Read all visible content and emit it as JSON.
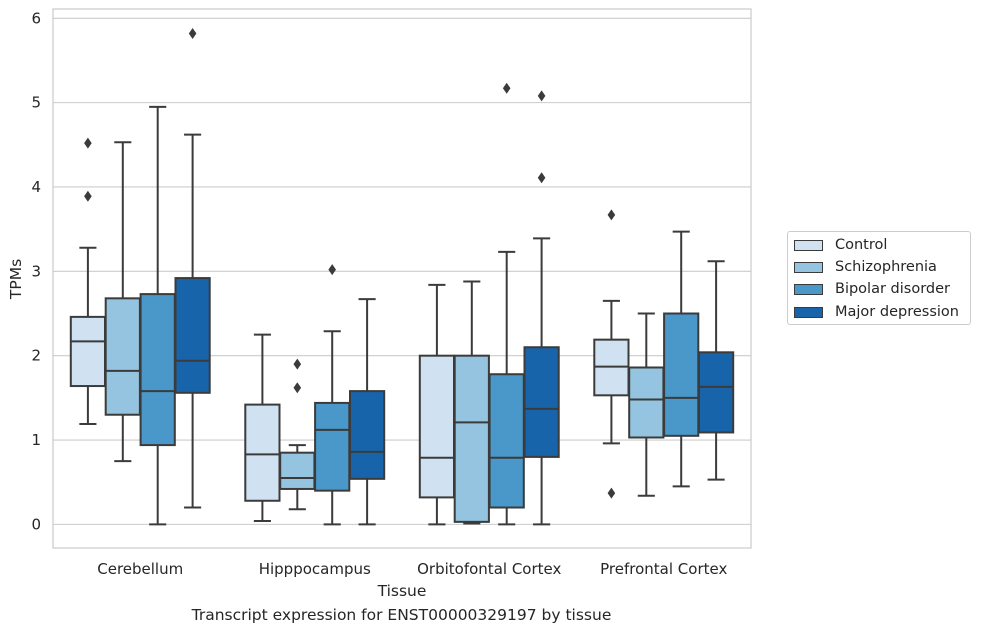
{
  "caption": "Transcript expression for ENST00000329197 by tissue",
  "colors": [
    "#d0e1f2",
    "#94c4df",
    "#4a98c9",
    "#1764ab"
  ],
  "chart_data": {
    "type": "box",
    "xlabel": "Tissue",
    "ylabel": "TPMs",
    "ylim": [
      -0.28,
      6.11
    ],
    "yticks": [
      0,
      1,
      2,
      3,
      4,
      5,
      6
    ],
    "grid": true,
    "legend_position": "right",
    "categories": [
      "Cerebellum",
      "Hipppocampus",
      "Orbitofontal Cortex",
      "Prefrontal Cortex"
    ],
    "series": [
      {
        "name": "Control",
        "boxes": [
          {
            "whislo": 1.19,
            "q1": 1.64,
            "med": 2.17,
            "q3": 2.46,
            "whishi": 3.28,
            "fliers": [
              3.89,
              4.52
            ]
          },
          {
            "whislo": 0.04,
            "q1": 0.28,
            "med": 0.83,
            "q3": 1.42,
            "whishi": 2.25,
            "fliers": []
          },
          {
            "whislo": 0.0,
            "q1": 0.32,
            "med": 0.79,
            "q3": 2.0,
            "whishi": 2.84,
            "fliers": []
          },
          {
            "whislo": 0.96,
            "q1": 1.53,
            "med": 1.87,
            "q3": 2.19,
            "whishi": 2.65,
            "fliers": [
              0.37,
              3.67
            ]
          }
        ]
      },
      {
        "name": "Schizophrenia",
        "boxes": [
          {
            "whislo": 0.75,
            "q1": 1.3,
            "med": 1.82,
            "q3": 2.68,
            "whishi": 4.53,
            "fliers": []
          },
          {
            "whislo": 0.18,
            "q1": 0.42,
            "med": 0.55,
            "q3": 0.85,
            "whishi": 0.94,
            "fliers": [
              1.62,
              1.9
            ]
          },
          {
            "whislo": 0.01,
            "q1": 0.03,
            "med": 1.21,
            "q3": 2.0,
            "whishi": 2.88,
            "fliers": []
          },
          {
            "whislo": 0.34,
            "q1": 1.03,
            "med": 1.48,
            "q3": 1.86,
            "whishi": 2.5,
            "fliers": []
          }
        ]
      },
      {
        "name": "Bipolar disorder",
        "boxes": [
          {
            "whislo": 0.0,
            "q1": 0.94,
            "med": 1.58,
            "q3": 2.73,
            "whishi": 4.95,
            "fliers": []
          },
          {
            "whislo": 0.0,
            "q1": 0.4,
            "med": 1.12,
            "q3": 1.44,
            "whishi": 2.29,
            "fliers": [
              3.02
            ]
          },
          {
            "whislo": 0.0,
            "q1": 0.2,
            "med": 0.79,
            "q3": 1.78,
            "whishi": 3.23,
            "fliers": [
              5.17
            ]
          },
          {
            "whislo": 0.45,
            "q1": 1.05,
            "med": 1.5,
            "q3": 2.5,
            "whishi": 3.47,
            "fliers": []
          }
        ]
      },
      {
        "name": "Major depression",
        "boxes": [
          {
            "whislo": 0.2,
            "q1": 1.56,
            "med": 1.94,
            "q3": 2.92,
            "whishi": 4.62,
            "fliers": [
              5.82
            ]
          },
          {
            "whislo": 0.0,
            "q1": 0.54,
            "med": 0.86,
            "q3": 1.58,
            "whishi": 2.67,
            "fliers": []
          },
          {
            "whislo": 0.0,
            "q1": 0.8,
            "med": 1.37,
            "q3": 2.1,
            "whishi": 3.39,
            "fliers": [
              4.11,
              5.08
            ]
          },
          {
            "whislo": 0.53,
            "q1": 1.09,
            "med": 1.63,
            "q3": 2.04,
            "whishi": 3.12,
            "fliers": []
          }
        ]
      }
    ]
  }
}
